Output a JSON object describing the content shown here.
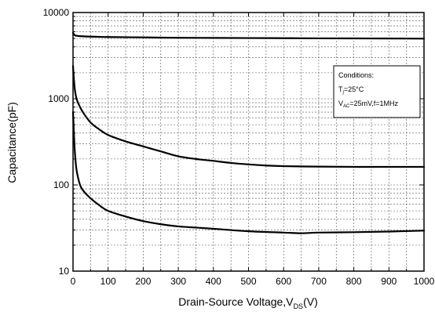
{
  "chart_data": {
    "type": "line",
    "title": "",
    "xlabel": {
      "main": "Drain-Source Voltage,V",
      "sub": "DS",
      "unit": "(V)"
    },
    "ylabel": "Capacitance(pF)",
    "xlim": [
      0,
      1000
    ],
    "ylim": [
      10,
      10000
    ],
    "y_scale": "log",
    "grid": true,
    "grid_style": "dashed",
    "x_ticks": [
      0,
      100,
      200,
      300,
      400,
      500,
      600,
      700,
      800,
      900,
      1000
    ],
    "x_tick_labels": [
      "0",
      "100",
      "200",
      "300",
      "400",
      "500",
      "600",
      "700",
      "800",
      "900",
      "1000"
    ],
    "y_ticks": [
      10,
      100,
      1000,
      10000
    ],
    "y_tick_labels": [
      "10",
      "100",
      "1000",
      "10000"
    ],
    "legend": {
      "placement": "top-right",
      "title": "Conditions:",
      "line1": {
        "main": "T",
        "sub": "j",
        "rest": "=25°C"
      },
      "line2": {
        "main": "V",
        "sub": "AC",
        "rest": "=25mV,f=1MHz"
      }
    },
    "series": [
      {
        "x": [
          0,
          5,
          10,
          20,
          50,
          100,
          200,
          300,
          400,
          500,
          600,
          700,
          800,
          900,
          1000
        ],
        "values": [
          5800,
          5450,
          5380,
          5320,
          5250,
          5200,
          5150,
          5100,
          5080,
          5060,
          5040,
          5020,
          5010,
          5000,
          4980
        ],
        "color": "#000000"
      },
      {
        "x": [
          0,
          2,
          5,
          10,
          20,
          30,
          50,
          75,
          100,
          150,
          200,
          250,
          300,
          350,
          400,
          450,
          500,
          550,
          600,
          700,
          800,
          900,
          1000
        ],
        "values": [
          2400,
          1800,
          1300,
          1000,
          800,
          680,
          530,
          440,
          380,
          320,
          280,
          245,
          215,
          200,
          190,
          180,
          173,
          168,
          165,
          163,
          162,
          162,
          162
        ],
        "color": "#000000"
      },
      {
        "x": [
          0,
          2,
          5,
          10,
          20,
          30,
          50,
          75,
          100,
          150,
          200,
          250,
          300,
          350,
          400,
          500,
          600,
          650,
          700,
          800,
          900,
          1000
        ],
        "values": [
          700,
          450,
          250,
          150,
          100,
          85,
          70,
          58,
          50,
          43,
          38,
          35,
          33,
          32,
          31,
          29,
          28,
          27.5,
          28,
          28.3,
          28.8,
          29.5
        ],
        "color": "#000000"
      }
    ]
  }
}
